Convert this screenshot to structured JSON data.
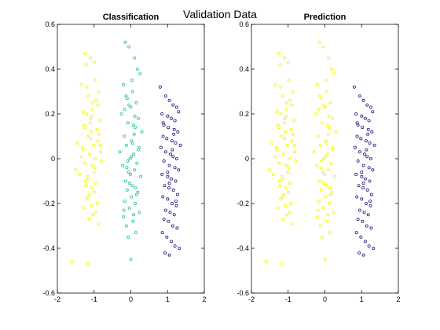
{
  "figure": {
    "title": "Validation Data"
  },
  "chart_data": [
    {
      "type": "scatter",
      "title": "Classification",
      "xlabel": "",
      "ylabel": "",
      "xlim": [
        -2,
        2
      ],
      "ylim": [
        -0.6,
        0.6
      ],
      "xticks": [
        "-2",
        "-1",
        "0",
        "1",
        "2"
      ],
      "yticks": [
        "-0.6",
        "-0.4",
        "-0.2",
        "0",
        "0.2",
        "0.4",
        "0.6"
      ],
      "grid": false,
      "marker": "open-circle",
      "series": [
        {
          "color": "#f5f500",
          "x": [
            -1.25,
            -1.1,
            -1.22,
            -1.0,
            -0.98,
            -1.35,
            -0.88,
            -1.15,
            -1.05,
            -0.95,
            -1.3,
            -1.2,
            -1.1,
            -0.85,
            -1.28,
            -0.92,
            -1.08,
            -1.18,
            -0.9,
            -1.02,
            -1.32,
            -0.82,
            -1.12,
            -0.97,
            -1.25,
            -1.05,
            -1.5,
            -1.4,
            -1.17,
            -1.23,
            -0.95,
            -1.07,
            -1.0,
            -1.15,
            -1.2,
            -0.92,
            -1.28,
            -1.03,
            -1.13,
            -0.88,
            -1.6,
            -1.18,
            -1.05,
            -1.1,
            -0.98,
            -1.25,
            -1.22,
            -0.9,
            -1.35,
            -1.08,
            -1.45,
            -1.12,
            -0.87,
            -1.0,
            -1.2,
            -0.95,
            -1.05,
            -1.15,
            -1.3,
            -0.83,
            -0.8,
            -1.1
          ],
          "y": [
            0.47,
            0.45,
            0.42,
            0.43,
            0.35,
            0.33,
            0.3,
            0.28,
            0.25,
            0.26,
            0.21,
            0.2,
            0.18,
            0.17,
            0.15,
            0.13,
            0.12,
            0.1,
            0.08,
            0.06,
            0.05,
            0.03,
            0.02,
            0.0,
            -0.02,
            -0.03,
            -0.05,
            -0.07,
            -0.08,
            -0.1,
            -0.11,
            -0.13,
            -0.15,
            -0.17,
            -0.18,
            -0.2,
            -0.22,
            -0.25,
            -0.27,
            -0.29,
            -0.46,
            -0.47,
            0.22,
            0.09,
            -0.04,
            0.14,
            -0.12,
            0.24,
            0.01,
            -0.21,
            0.07,
            -0.16,
            0.11,
            -0.06,
            0.32,
            -0.24,
            0.19,
            -0.09,
            0.04,
            0.06,
            -0.01,
            0.16
          ]
        },
        {
          "color": "#22c1a0",
          "x": [
            -0.15,
            -0.05,
            0.1,
            0.18,
            0.25,
            -0.2,
            0.05,
            -0.1,
            0.15,
            0.0,
            -0.25,
            0.2,
            -0.08,
            0.12,
            0.3,
            -0.18,
            0.02,
            -0.12,
            0.22,
            -0.3,
            0.08,
            -0.02,
            0.17,
            -0.22,
            0.1,
            -0.06,
            0.27,
            -0.14,
            0.04,
            -0.1,
            0.19,
            0.01,
            -0.16,
            0.12,
            -0.04,
            0.23,
            -0.2,
            0.06,
            -0.12,
            0.14,
            0.0,
            -0.07,
            0.03,
            -0.17,
            0.09,
            -0.01,
            0.16,
            -0.13,
            0.07,
            -0.09,
            0.2,
            -0.03,
            0.11,
            -0.19,
            0.05,
            0.13,
            -0.05,
            0.02,
            -0.11,
            0.08
          ],
          "y": [
            0.52,
            0.5,
            0.45,
            0.4,
            0.38,
            0.33,
            0.3,
            0.27,
            0.25,
            0.23,
            0.2,
            0.18,
            0.16,
            0.14,
            0.12,
            0.1,
            0.08,
            0.06,
            0.05,
            0.03,
            0.02,
            0.0,
            -0.02,
            -0.03,
            -0.05,
            -0.06,
            -0.08,
            -0.1,
            -0.12,
            -0.14,
            -0.15,
            -0.17,
            -0.19,
            -0.2,
            -0.22,
            -0.24,
            -0.26,
            -0.28,
            -0.3,
            -0.33,
            -0.45,
            -0.35,
            0.35,
            0.22,
            0.11,
            -0.07,
            -0.16,
            0.28,
            0.15,
            -0.01,
            0.04,
            -0.11,
            0.19,
            -0.23,
            0.07,
            -0.13,
            0.24,
            0.01,
            -0.04,
            -0.25
          ]
        },
        {
          "color": "#2a1a80",
          "x": [
            0.8,
            0.95,
            1.05,
            1.15,
            1.25,
            1.3,
            0.85,
            1.0,
            1.1,
            1.2,
            0.9,
            1.02,
            1.18,
            1.28,
            0.88,
            0.98,
            1.12,
            1.22,
            1.35,
            0.82,
            0.95,
            1.08,
            1.15,
            1.25,
            0.9,
            1.05,
            1.2,
            1.3,
            0.85,
            1.0,
            1.1,
            1.22,
            0.92,
            1.04,
            1.16,
            1.27,
            0.87,
            1.0,
            1.12,
            1.24,
            0.95,
            1.07,
            1.18,
            0.9,
            1.02,
            1.14,
            1.26,
            0.86,
            0.98,
            1.1,
            1.2,
            1.32,
            0.93,
            1.05,
            1.17,
            0.88,
            1.0,
            1.13,
            1.23,
            1.05
          ],
          "y": [
            0.32,
            0.28,
            0.26,
            0.24,
            0.23,
            0.21,
            0.2,
            0.19,
            0.18,
            0.17,
            0.15,
            0.14,
            0.13,
            0.12,
            0.1,
            0.09,
            0.08,
            0.07,
            0.06,
            0.05,
            0.03,
            0.02,
            0.01,
            0.0,
            -0.01,
            -0.03,
            -0.04,
            -0.05,
            -0.07,
            -0.08,
            -0.09,
            -0.1,
            -0.12,
            -0.13,
            -0.14,
            -0.16,
            -0.17,
            -0.18,
            -0.2,
            -0.21,
            -0.23,
            -0.24,
            -0.25,
            -0.27,
            -0.28,
            -0.3,
            -0.31,
            -0.33,
            -0.35,
            -0.37,
            -0.39,
            -0.4,
            -0.42,
            -0.43,
            0.11,
            0.16,
            -0.06,
            0.04,
            -0.19,
            -0.11
          ]
        }
      ]
    },
    {
      "type": "scatter",
      "title": "Prediction",
      "xlabel": "",
      "ylabel": "",
      "xlim": [
        -2,
        2
      ],
      "ylim": [
        -0.6,
        0.6
      ],
      "xticks": [
        "-2",
        "-1",
        "0",
        "1",
        "2"
      ],
      "yticks": [
        "-0.6",
        "-0.4",
        "-0.2",
        "0",
        "0.2",
        "0.4",
        "0.6"
      ],
      "grid": false,
      "marker": "open-circle",
      "series": [
        {
          "color": "#f5f500",
          "x": [
            -1.25,
            -1.1,
            -1.22,
            -1.0,
            -0.98,
            -1.35,
            -0.88,
            -1.15,
            -1.05,
            -0.95,
            -1.3,
            -1.2,
            -1.1,
            -0.85,
            -1.28,
            -0.92,
            -1.08,
            -1.18,
            -0.9,
            -1.02,
            -1.32,
            -0.82,
            -1.12,
            -0.97,
            -1.25,
            -1.05,
            -1.5,
            -1.4,
            -1.17,
            -1.23,
            -0.95,
            -1.07,
            -1.0,
            -1.15,
            -1.2,
            -0.92,
            -1.28,
            -1.03,
            -1.13,
            -0.88,
            -1.6,
            -1.18,
            -1.05,
            -1.1,
            -0.98,
            -1.25,
            -1.22,
            -0.9,
            -1.35,
            -1.08,
            -1.45,
            -1.12,
            -0.87,
            -1.0,
            -1.2,
            -0.95,
            -1.05,
            -1.15,
            -1.3,
            -0.83,
            -0.8,
            -1.1,
            -0.15,
            -0.05,
            0.1,
            0.18,
            0.25,
            -0.2,
            0.05,
            -0.1,
            0.15,
            0.0,
            -0.25,
            0.2,
            -0.08,
            0.12,
            0.3,
            -0.18,
            0.02,
            -0.12,
            0.22,
            -0.3,
            0.08,
            -0.02,
            0.17,
            -0.22,
            0.1,
            -0.06,
            0.27,
            -0.14,
            0.04,
            -0.1,
            0.19,
            0.01,
            -0.16,
            0.12,
            -0.04,
            0.23,
            -0.2,
            0.06,
            -0.12,
            0.14,
            0.0,
            -0.07,
            0.03,
            -0.17,
            0.09,
            -0.01,
            0.16,
            -0.13,
            0.07,
            -0.09,
            0.2,
            -0.03,
            0.11,
            -0.19,
            0.05,
            0.13,
            -0.05,
            0.02,
            -0.11,
            0.08
          ],
          "y": [
            0.47,
            0.45,
            0.42,
            0.43,
            0.35,
            0.33,
            0.3,
            0.28,
            0.25,
            0.26,
            0.21,
            0.2,
            0.18,
            0.17,
            0.15,
            0.13,
            0.12,
            0.1,
            0.08,
            0.06,
            0.05,
            0.03,
            0.02,
            0.0,
            -0.02,
            -0.03,
            -0.05,
            -0.07,
            -0.08,
            -0.1,
            -0.11,
            -0.13,
            -0.15,
            -0.17,
            -0.18,
            -0.2,
            -0.22,
            -0.25,
            -0.27,
            -0.29,
            -0.46,
            -0.47,
            0.22,
            0.09,
            -0.04,
            0.14,
            -0.12,
            0.24,
            0.01,
            -0.21,
            0.07,
            -0.16,
            0.11,
            -0.06,
            0.32,
            -0.24,
            0.19,
            -0.09,
            0.04,
            0.06,
            -0.01,
            0.16,
            0.52,
            0.5,
            0.45,
            0.4,
            0.38,
            0.33,
            0.3,
            0.27,
            0.25,
            0.23,
            0.2,
            0.18,
            0.16,
            0.14,
            0.12,
            0.1,
            0.08,
            0.06,
            0.05,
            0.03,
            0.02,
            0.0,
            -0.02,
            -0.03,
            -0.05,
            -0.06,
            -0.08,
            -0.1,
            -0.12,
            -0.14,
            -0.15,
            -0.17,
            -0.19,
            -0.2,
            -0.22,
            -0.24,
            -0.26,
            -0.28,
            -0.3,
            -0.33,
            -0.45,
            -0.35,
            0.35,
            0.22,
            0.11,
            -0.07,
            -0.16,
            0.28,
            0.15,
            -0.01,
            0.04,
            -0.11,
            0.19,
            -0.23,
            0.07,
            -0.13,
            0.24,
            0.01,
            -0.04,
            -0.25
          ]
        },
        {
          "color": "#2a1a80",
          "x": [
            0.8,
            0.95,
            1.05,
            1.15,
            1.25,
            1.3,
            0.85,
            1.0,
            1.1,
            1.2,
            0.9,
            1.02,
            1.18,
            1.28,
            0.88,
            0.98,
            1.12,
            1.22,
            1.35,
            0.82,
            0.95,
            1.08,
            1.15,
            1.25,
            0.9,
            1.05,
            1.2,
            1.3,
            0.85,
            1.0,
            1.1,
            1.22,
            0.92,
            1.04,
            1.16,
            1.27,
            0.87,
            1.0,
            1.12,
            1.24,
            0.95,
            1.07,
            1.18,
            0.9,
            1.02,
            1.14,
            1.26,
            0.86,
            0.98,
            1.1,
            1.2,
            1.32,
            0.93,
            1.05,
            1.17,
            0.88,
            1.0,
            1.13,
            1.23,
            1.05
          ],
          "y": [
            0.32,
            0.28,
            0.26,
            0.24,
            0.23,
            0.21,
            0.2,
            0.19,
            0.18,
            0.17,
            0.15,
            0.14,
            0.13,
            0.12,
            0.1,
            0.09,
            0.08,
            0.07,
            0.06,
            0.05,
            0.03,
            0.02,
            0.01,
            0.0,
            -0.01,
            -0.03,
            -0.04,
            -0.05,
            -0.07,
            -0.08,
            -0.09,
            -0.1,
            -0.12,
            -0.13,
            -0.14,
            -0.16,
            -0.17,
            -0.18,
            -0.2,
            -0.21,
            -0.23,
            -0.24,
            -0.25,
            -0.27,
            -0.28,
            -0.3,
            -0.31,
            -0.33,
            -0.35,
            -0.37,
            -0.39,
            -0.4,
            -0.42,
            -0.43,
            0.11,
            0.16,
            -0.06,
            0.04,
            -0.19,
            -0.11
          ]
        }
      ]
    }
  ]
}
